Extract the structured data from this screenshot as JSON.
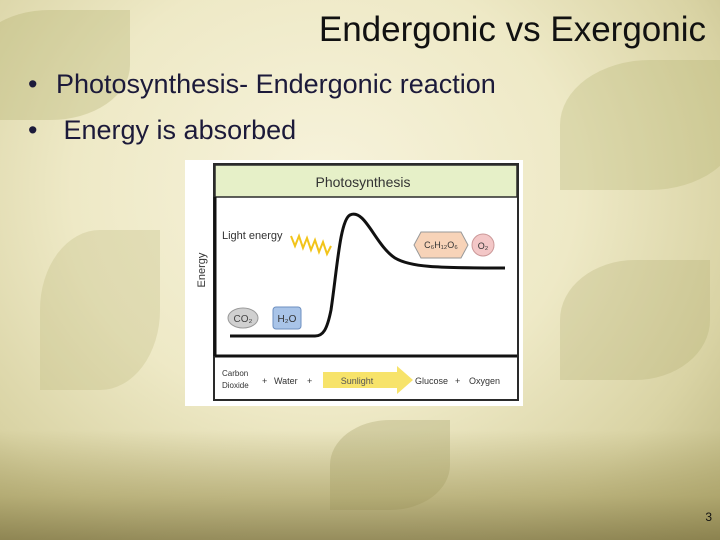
{
  "slide": {
    "title": "Endergonic vs Exergonic",
    "bullets": [
      "Photosynthesis- Endergonic reaction",
      " Energy is absorbed"
    ],
    "page_number": "3"
  },
  "figure": {
    "header": "Photosynthesis",
    "light_label": "Light energy",
    "y_axis_label": "Energy",
    "reactant_1": "CO₂",
    "reactant_2": "H₂O",
    "product_1": "C₆H₁₂O₆",
    "product_2": "O₂",
    "equation": {
      "term_1_line1": "Carbon",
      "term_1_line2": "Dioxide",
      "plus_1": "+",
      "term_2": "Water",
      "plus_2": "+",
      "arrow_label": "Sunlight",
      "term_3": "Glucose",
      "plus_3": "+",
      "term_4": "Oxygen"
    },
    "colors": {
      "header_bg": "#e6f0c8",
      "reactant_1_fill": "#d0d0d0",
      "reactant_2_fill": "#a9c4e8",
      "product_1_fill": "#f7d3b8",
      "product_2_fill": "#f3c7c7",
      "arrow_fill": "#f7e36a",
      "wave": "#f2c41a"
    }
  }
}
